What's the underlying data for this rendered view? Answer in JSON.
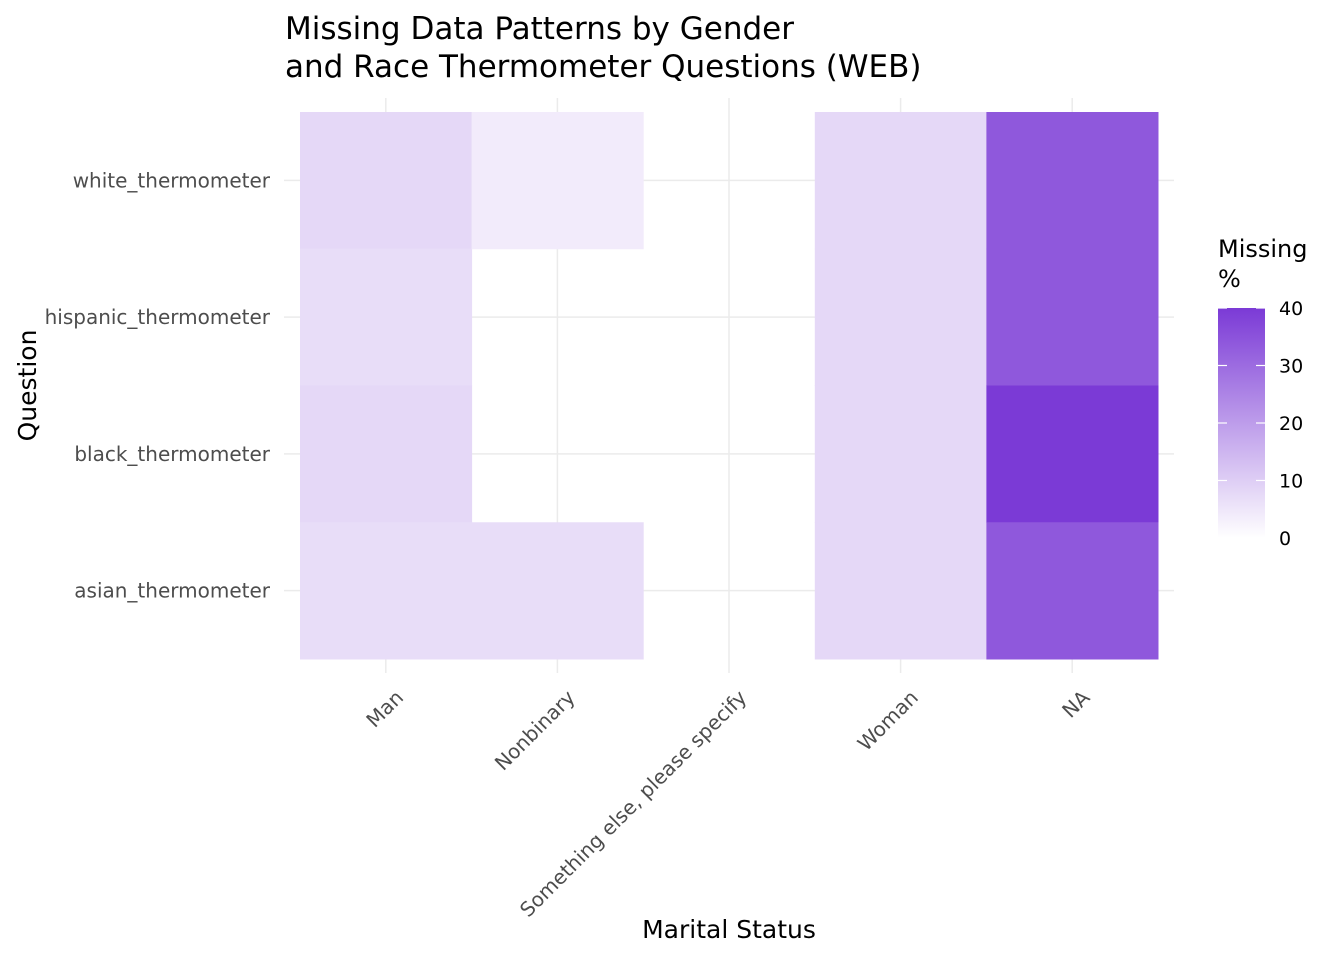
{
  "chart_data": {
    "type": "heatmap",
    "title": "Missing Data Patterns by Gender\nand Race Thermometer Questions (WEB)",
    "xlabel": "Marital Status",
    "ylabel": "Question",
    "x_categories": [
      "Man",
      "Nonbinary",
      "Something else, please specify",
      "Woman",
      "NA"
    ],
    "y_categories": [
      "white_thermometer",
      "hispanic_thermometer",
      "black_thermometer",
      "asian_thermometer"
    ],
    "cells": [
      {
        "x": "Man",
        "y": "white_thermometer",
        "value": 8
      },
      {
        "x": "Man",
        "y": "hispanic_thermometer",
        "value": 7
      },
      {
        "x": "Man",
        "y": "black_thermometer",
        "value": 8
      },
      {
        "x": "Man",
        "y": "asian_thermometer",
        "value": 7
      },
      {
        "x": "Nonbinary",
        "y": "white_thermometer",
        "value": 4
      },
      {
        "x": "Nonbinary",
        "y": "asian_thermometer",
        "value": 7
      },
      {
        "x": "Woman",
        "y": "white_thermometer",
        "value": 8
      },
      {
        "x": "Woman",
        "y": "hispanic_thermometer",
        "value": 8
      },
      {
        "x": "Woman",
        "y": "black_thermometer",
        "value": 8
      },
      {
        "x": "Woman",
        "y": "asian_thermometer",
        "value": 8
      },
      {
        "x": "NA",
        "y": "white_thermometer",
        "value": 34
      },
      {
        "x": "NA",
        "y": "hispanic_thermometer",
        "value": 34
      },
      {
        "x": "NA",
        "y": "black_thermometer",
        "value": 40
      },
      {
        "x": "NA",
        "y": "asian_thermometer",
        "value": 34
      }
    ],
    "legend": {
      "title": "Missing\n%",
      "ticks": [
        0,
        10,
        20,
        30,
        40
      ],
      "range": [
        0,
        40
      ],
      "color_low": "#ffffff",
      "color_high": "#7b3ad6",
      "placement": "right"
    },
    "grid": true
  }
}
